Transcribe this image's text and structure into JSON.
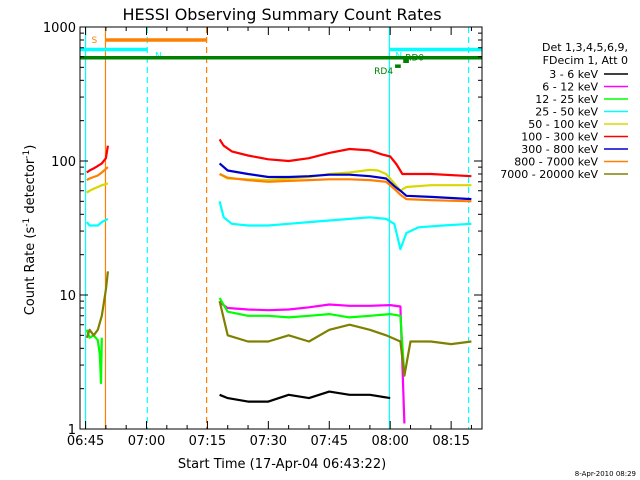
{
  "chart_data": {
    "type": "line",
    "title": "HESSI Observing Summary Count Rates",
    "xlabel": "Start Time (17-Apr-04 06:43:22)",
    "ylabel_prefix": "Count Rate (s",
    "ylabel_sup1": "-1",
    "ylabel_mid": " detector",
    "ylabel_sup2": "-1",
    "ylabel_suffix": ")",
    "yscale": "log",
    "ylim": [
      1,
      1000
    ],
    "xlim_minutes": [
      -1.37,
      97.6
    ],
    "x_ticks": [
      {
        "m": 0,
        "label": "06:45"
      },
      {
        "m": 15,
        "label": "07:00"
      },
      {
        "m": 30,
        "label": "07:15"
      },
      {
        "m": 45,
        "label": "07:30"
      },
      {
        "m": 60,
        "label": "07:45"
      },
      {
        "m": 75,
        "label": "08:00"
      },
      {
        "m": 90,
        "label": "08:15"
      }
    ],
    "y_ticks": [
      {
        "v": 1,
        "label": "1"
      },
      {
        "v": 10,
        "label": "10"
      },
      {
        "v": 100,
        "label": "100"
      },
      {
        "v": 1000,
        "label": "1000"
      }
    ],
    "legend": {
      "header": [
        "Det 1,3,4,5,6,9,",
        "FDecim 1, Att 0"
      ],
      "entries": [
        {
          "label": "3 - 6 keV",
          "color": "#000000"
        },
        {
          "label": "6 - 12 keV",
          "color": "#ff00ff"
        },
        {
          "label": "12 - 25 keV",
          "color": "#00ff00"
        },
        {
          "label": "25 - 50 keV",
          "color": "#00ffff"
        },
        {
          "label": "50 - 100 keV",
          "color": "#d8d800"
        },
        {
          "label": "100 - 300 keV",
          "color": "#ff0000"
        },
        {
          "label": "300 - 800 keV",
          "color": "#0000cc"
        },
        {
          "label": "800 - 7000 keV",
          "color": "#ff8000"
        },
        {
          "label": "7000 - 20000 keV",
          "color": "#808000"
        }
      ]
    },
    "series": [
      {
        "name": "3 - 6 keV",
        "color": "#000000",
        "segments": [
          {
            "x": [
              33,
              35,
              40,
              45,
              50,
              55,
              60,
              65,
              70,
              75
            ],
            "y": [
              1.8,
              1.7,
              1.6,
              1.6,
              1.8,
              1.7,
              1.9,
              1.8,
              1.8,
              1.7
            ]
          }
        ]
      },
      {
        "name": "6 - 12 keV",
        "color": "#ff00ff",
        "segments": [
          {
            "x": [
              33,
              35,
              40,
              45,
              50,
              55,
              60,
              65,
              70,
              75,
              77.5,
              78.5
            ],
            "y": [
              8.8,
              8,
              7.8,
              7.7,
              7.8,
              8.1,
              8.5,
              8.3,
              8.3,
              8.4,
              8.2,
              1.1
            ]
          }
        ]
      },
      {
        "name": "12 - 25 keV",
        "color": "#00ff00",
        "segments": [
          {
            "x": [
              0.3,
              1,
              2,
              3,
              3.5,
              3.8,
              4
            ],
            "y": [
              5.5,
              4.8,
              5,
              4.6,
              3.6,
              2.2,
              4.8
            ]
          },
          {
            "x": [
              33,
              35,
              40,
              45,
              50,
              55,
              60,
              65,
              70,
              75,
              77.5,
              78.5
            ],
            "y": [
              9.5,
              7.5,
              7,
              7,
              6.8,
              7,
              7.2,
              6.8,
              7,
              7.2,
              7,
              2.5
            ]
          }
        ]
      },
      {
        "name": "25 - 50 keV",
        "color": "#00ffff",
        "segments": [
          {
            "x": [
              0.3,
              1,
              2,
              3,
              4,
              5.5
            ],
            "y": [
              35,
              33,
              33,
              33,
              35,
              37
            ]
          },
          {
            "x": [
              33,
              34,
              36,
              40,
              45,
              50,
              55,
              60,
              65,
              70,
              74,
              76,
              77.5,
              79,
              82,
              88,
              95
            ],
            "y": [
              50,
              38,
              34,
              33,
              33,
              34,
              35,
              36,
              37,
              38,
              37,
              34,
              22,
              29,
              32,
              33,
              34
            ]
          }
        ]
      },
      {
        "name": "50 - 100 keV",
        "color": "#d8d800",
        "segments": [
          {
            "x": [
              0.3,
              1,
              2,
              3,
              4,
              5.5
            ],
            "y": [
              58,
              60,
              62,
              64,
              66,
              68
            ]
          },
          {
            "x": [
              33,
              35,
              40,
              45,
              50,
              55,
              60,
              65,
              70,
              72,
              74,
              76,
              77.5,
              79,
              85,
              95
            ],
            "y": [
              80,
              74,
              73,
              72,
              74,
              76,
              80,
              82,
              86,
              85,
              80,
              68,
              60,
              64,
              66,
              66
            ]
          }
        ]
      },
      {
        "name": "100 - 300 keV",
        "color": "#ff0000",
        "segments": [
          {
            "x": [
              0.3,
              1,
              2,
              3,
              4,
              5,
              5.5
            ],
            "y": [
              82,
              85,
              88,
              92,
              96,
              105,
              130
            ]
          },
          {
            "x": [
              33,
              34,
              36,
              40,
              45,
              50,
              55,
              60,
              65,
              70,
              73,
              75,
              76.5,
              78,
              85,
              95
            ],
            "y": [
              145,
              130,
              118,
              110,
              103,
              100,
              105,
              115,
              123,
              120,
              112,
              108,
              95,
              80,
              80,
              77
            ]
          }
        ]
      },
      {
        "name": "300 - 800 keV",
        "color": "#0000cc",
        "segments": [
          {
            "x": [
              33,
              35,
              40,
              45,
              50,
              55,
              60,
              65,
              70,
              74,
              76,
              77.5,
              79,
              85,
              95
            ],
            "y": [
              96,
              85,
              80,
              76,
              76,
              77,
              79,
              79,
              77,
              74,
              65,
              60,
              55,
              54,
              52
            ]
          }
        ]
      },
      {
        "name": "800 - 7000 keV",
        "color": "#ff8000",
        "segments": [
          {
            "x": [
              0.3,
              1,
              2,
              3,
              4,
              5.5
            ],
            "y": [
              72,
              74,
              76,
              78,
              82,
              90
            ]
          },
          {
            "x": [
              33,
              35,
              40,
              45,
              50,
              55,
              60,
              65,
              70,
              74,
              76,
              77.5,
              79,
              85,
              95
            ],
            "y": [
              80,
              75,
              72,
              70,
              71,
              72,
              73,
              73,
              72,
              70,
              62,
              56,
              52,
              51,
              50
            ]
          }
        ]
      },
      {
        "name": "7000 - 20000 keV",
        "color": "#808000",
        "segments": [
          {
            "x": [
              0.3,
              1,
              2,
              3,
              4,
              5,
              5.5
            ],
            "y": [
              4.8,
              5.5,
              5,
              5.5,
              7,
              11,
              15
            ]
          },
          {
            "x": [
              33,
              35,
              40,
              45,
              50,
              55,
              60,
              65,
              70,
              74,
              77.5,
              78.5,
              80,
              85,
              90,
              95
            ],
            "y": [
              9,
              5,
              4.5,
              4.5,
              5,
              4.5,
              5.5,
              6,
              5.5,
              5,
              4.5,
              2.5,
              4.5,
              4.5,
              4.3,
              4.5
            ]
          }
        ]
      }
    ],
    "flags": [
      {
        "label": "S",
        "color": "#ff8000",
        "x0": 4.9,
        "x1": 29.8,
        "y": 800
      },
      {
        "label": "N",
        "color": "#00ffff",
        "x0": -1.37,
        "x1": 15.2,
        "y": 680
      },
      {
        "label": "N",
        "color": "#00ffff",
        "x0": 74.8,
        "x1": 97.6,
        "y": 680
      },
      {
        "label": "",
        "color": "#008000",
        "x0": -1.37,
        "x1": 97.6,
        "y": 590
      },
      {
        "label": "RD0",
        "color": "#008000",
        "x0": 78.2,
        "x1": 79.6,
        "y": 555
      },
      {
        "label": "RD4",
        "color": "#008000",
        "x0": 76.2,
        "x1": 77.6,
        "y": 510
      }
    ],
    "vlines": [
      {
        "x": 0,
        "color": "#00ffff",
        "style": "solid"
      },
      {
        "x": 15.2,
        "color": "#00ffff",
        "style": "dashed"
      },
      {
        "x": 74.8,
        "color": "#00ffff",
        "style": "solid"
      },
      {
        "x": 94.3,
        "color": "#00ffff",
        "style": "dashed"
      },
      {
        "x": 4.9,
        "color": "#ff8000",
        "style": "solid"
      },
      {
        "x": 29.8,
        "color": "#ff8000",
        "style": "dashed"
      }
    ],
    "grid": false
  },
  "stamp": "8-Apr-2010 08:29"
}
